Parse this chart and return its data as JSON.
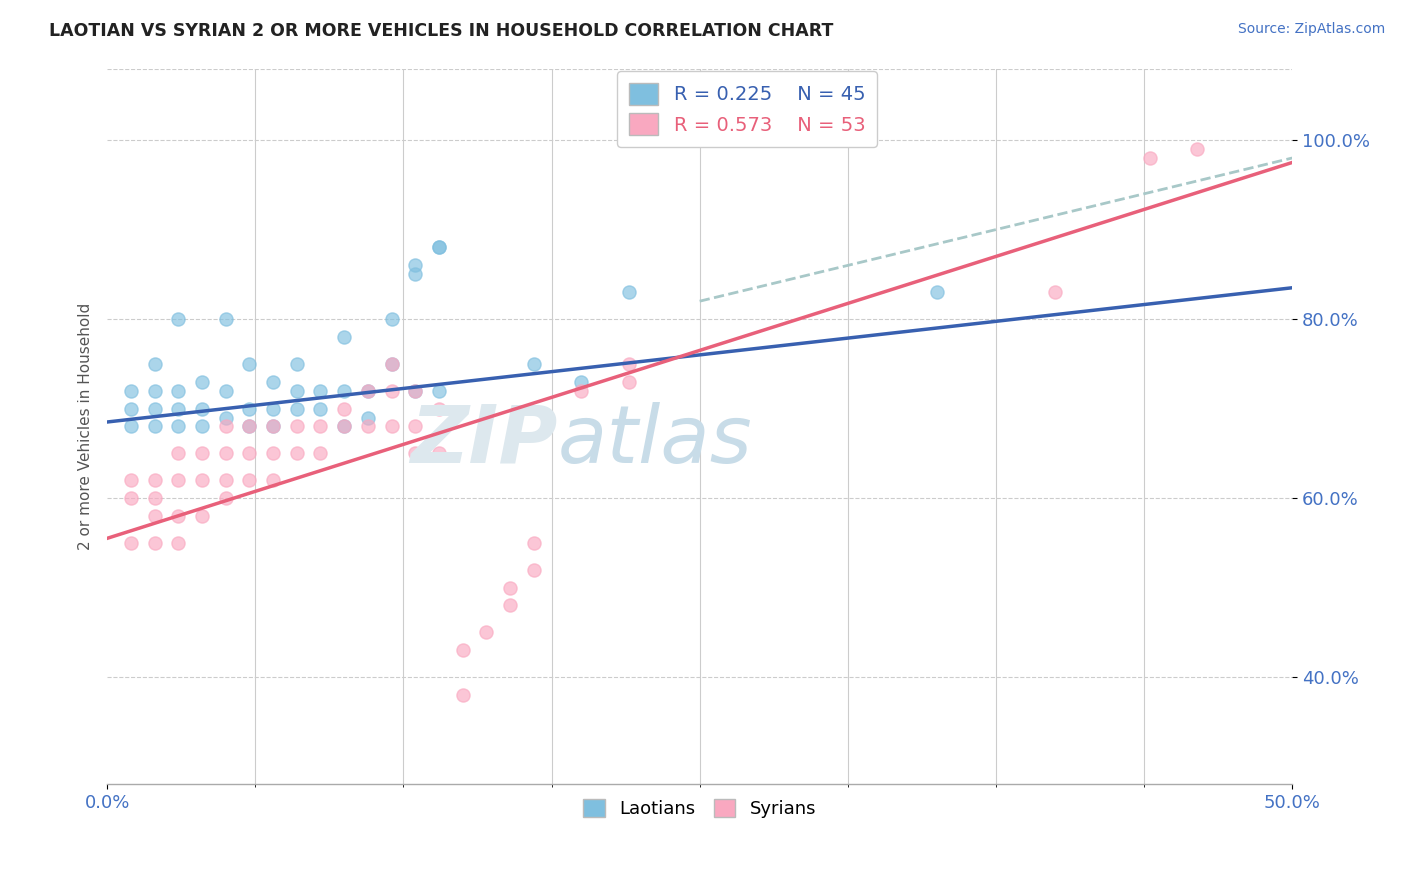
{
  "title": "LAOTIAN VS SYRIAN 2 OR MORE VEHICLES IN HOUSEHOLD CORRELATION CHART",
  "source_text": "Source: ZipAtlas.com",
  "ylabel": "2 or more Vehicles in Household",
  "xlim": [
    0.0,
    0.5
  ],
  "ylim": [
    0.28,
    1.08
  ],
  "ytick_positions": [
    0.4,
    0.6,
    0.8,
    1.0
  ],
  "yticklabels": [
    "40.0%",
    "60.0%",
    "80.0%",
    "100.0%"
  ],
  "R_laotian": 0.225,
  "N_laotian": 45,
  "R_syrian": 0.573,
  "N_syrian": 53,
  "laotian_color": "#7fbfdf",
  "syrian_color": "#f9a8c0",
  "laotian_line_color": "#3860b0",
  "syrian_line_color": "#e8607a",
  "dash_line_color": "#a8c8c8",
  "watermark_zip": "ZIP",
  "watermark_atlas": "atlas",
  "laotian_scatter": [
    [
      0.01,
      0.68
    ],
    [
      0.01,
      0.7
    ],
    [
      0.01,
      0.72
    ],
    [
      0.02,
      0.68
    ],
    [
      0.02,
      0.7
    ],
    [
      0.02,
      0.72
    ],
    [
      0.02,
      0.75
    ],
    [
      0.03,
      0.68
    ],
    [
      0.03,
      0.7
    ],
    [
      0.03,
      0.72
    ],
    [
      0.03,
      0.8
    ],
    [
      0.04,
      0.68
    ],
    [
      0.04,
      0.7
    ],
    [
      0.04,
      0.73
    ],
    [
      0.05,
      0.69
    ],
    [
      0.05,
      0.72
    ],
    [
      0.05,
      0.8
    ],
    [
      0.06,
      0.68
    ],
    [
      0.06,
      0.7
    ],
    [
      0.06,
      0.75
    ],
    [
      0.07,
      0.68
    ],
    [
      0.07,
      0.7
    ],
    [
      0.07,
      0.73
    ],
    [
      0.08,
      0.7
    ],
    [
      0.08,
      0.72
    ],
    [
      0.08,
      0.75
    ],
    [
      0.09,
      0.7
    ],
    [
      0.09,
      0.72
    ],
    [
      0.1,
      0.68
    ],
    [
      0.1,
      0.72
    ],
    [
      0.1,
      0.78
    ],
    [
      0.11,
      0.69
    ],
    [
      0.11,
      0.72
    ],
    [
      0.12,
      0.75
    ],
    [
      0.12,
      0.8
    ],
    [
      0.13,
      0.72
    ],
    [
      0.13,
      0.85
    ],
    [
      0.13,
      0.86
    ],
    [
      0.14,
      0.72
    ],
    [
      0.14,
      0.88
    ],
    [
      0.14,
      0.88
    ],
    [
      0.18,
      0.75
    ],
    [
      0.2,
      0.73
    ],
    [
      0.22,
      0.83
    ],
    [
      0.35,
      0.83
    ]
  ],
  "syrian_scatter": [
    [
      0.01,
      0.55
    ],
    [
      0.01,
      0.6
    ],
    [
      0.01,
      0.62
    ],
    [
      0.02,
      0.55
    ],
    [
      0.02,
      0.58
    ],
    [
      0.02,
      0.6
    ],
    [
      0.02,
      0.62
    ],
    [
      0.03,
      0.55
    ],
    [
      0.03,
      0.58
    ],
    [
      0.03,
      0.62
    ],
    [
      0.03,
      0.65
    ],
    [
      0.04,
      0.58
    ],
    [
      0.04,
      0.62
    ],
    [
      0.04,
      0.65
    ],
    [
      0.05,
      0.6
    ],
    [
      0.05,
      0.62
    ],
    [
      0.05,
      0.65
    ],
    [
      0.05,
      0.68
    ],
    [
      0.06,
      0.62
    ],
    [
      0.06,
      0.65
    ],
    [
      0.06,
      0.68
    ],
    [
      0.07,
      0.62
    ],
    [
      0.07,
      0.65
    ],
    [
      0.07,
      0.68
    ],
    [
      0.08,
      0.65
    ],
    [
      0.08,
      0.68
    ],
    [
      0.09,
      0.65
    ],
    [
      0.09,
      0.68
    ],
    [
      0.1,
      0.68
    ],
    [
      0.1,
      0.7
    ],
    [
      0.11,
      0.68
    ],
    [
      0.11,
      0.72
    ],
    [
      0.12,
      0.68
    ],
    [
      0.12,
      0.72
    ],
    [
      0.12,
      0.75
    ],
    [
      0.13,
      0.65
    ],
    [
      0.13,
      0.68
    ],
    [
      0.13,
      0.72
    ],
    [
      0.14,
      0.65
    ],
    [
      0.14,
      0.7
    ],
    [
      0.15,
      0.38
    ],
    [
      0.15,
      0.43
    ],
    [
      0.16,
      0.45
    ],
    [
      0.17,
      0.48
    ],
    [
      0.17,
      0.5
    ],
    [
      0.18,
      0.52
    ],
    [
      0.18,
      0.55
    ],
    [
      0.2,
      0.72
    ],
    [
      0.22,
      0.73
    ],
    [
      0.22,
      0.75
    ],
    [
      0.4,
      0.83
    ],
    [
      0.44,
      0.98
    ],
    [
      0.46,
      0.99
    ]
  ]
}
